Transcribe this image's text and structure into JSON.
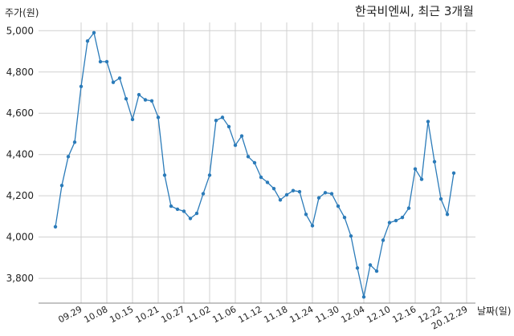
{
  "chart_data": {
    "type": "line",
    "title": "한국비엔씨, 최근 3개월",
    "ylabel": "주가(원)",
    "xlabel": "날짜(일)",
    "ylim": [
      3680,
      5040
    ],
    "yticks": [
      3800,
      4000,
      4200,
      4400,
      4600,
      4800,
      5000
    ],
    "ytick_labels": [
      "3,800",
      "4,000",
      "4,200",
      "4,400",
      "4,600",
      "4,800",
      "5,000"
    ],
    "xtick_labels": [
      "09.29",
      "10.08",
      "10.15",
      "10.21",
      "10.27",
      "11.02",
      "11.06",
      "11.12",
      "11.18",
      "11.24",
      "11.30",
      "12.04",
      "12.10",
      "12.16",
      "12.22",
      "20.12.29"
    ],
    "xtick_positions": [
      4,
      8,
      12,
      16,
      20,
      24,
      28,
      32,
      36,
      40,
      44,
      48,
      52,
      56,
      60,
      64
    ],
    "grid": true,
    "line_color": "#2b7bb9",
    "series": [
      {
        "name": "",
        "values": [
          4050,
          4250,
          4390,
          4460,
          4730,
          4950,
          4990,
          4850,
          4850,
          4750,
          4770,
          4670,
          4570,
          4690,
          4665,
          4660,
          4580,
          4300,
          4150,
          4135,
          4125,
          4090,
          4115,
          4210,
          4300,
          4565,
          4580,
          4535,
          4445,
          4490,
          4390,
          4360,
          4290,
          4265,
          4235,
          4180,
          4205,
          4225,
          4220,
          4110,
          4055,
          4190,
          4215,
          4210,
          4150,
          4095,
          4005,
          3850,
          3710,
          3865,
          3835,
          3985,
          4070,
          4080,
          4095,
          4140,
          4330,
          4280,
          4560,
          4365,
          4185,
          4110,
          4310
        ]
      }
    ]
  }
}
